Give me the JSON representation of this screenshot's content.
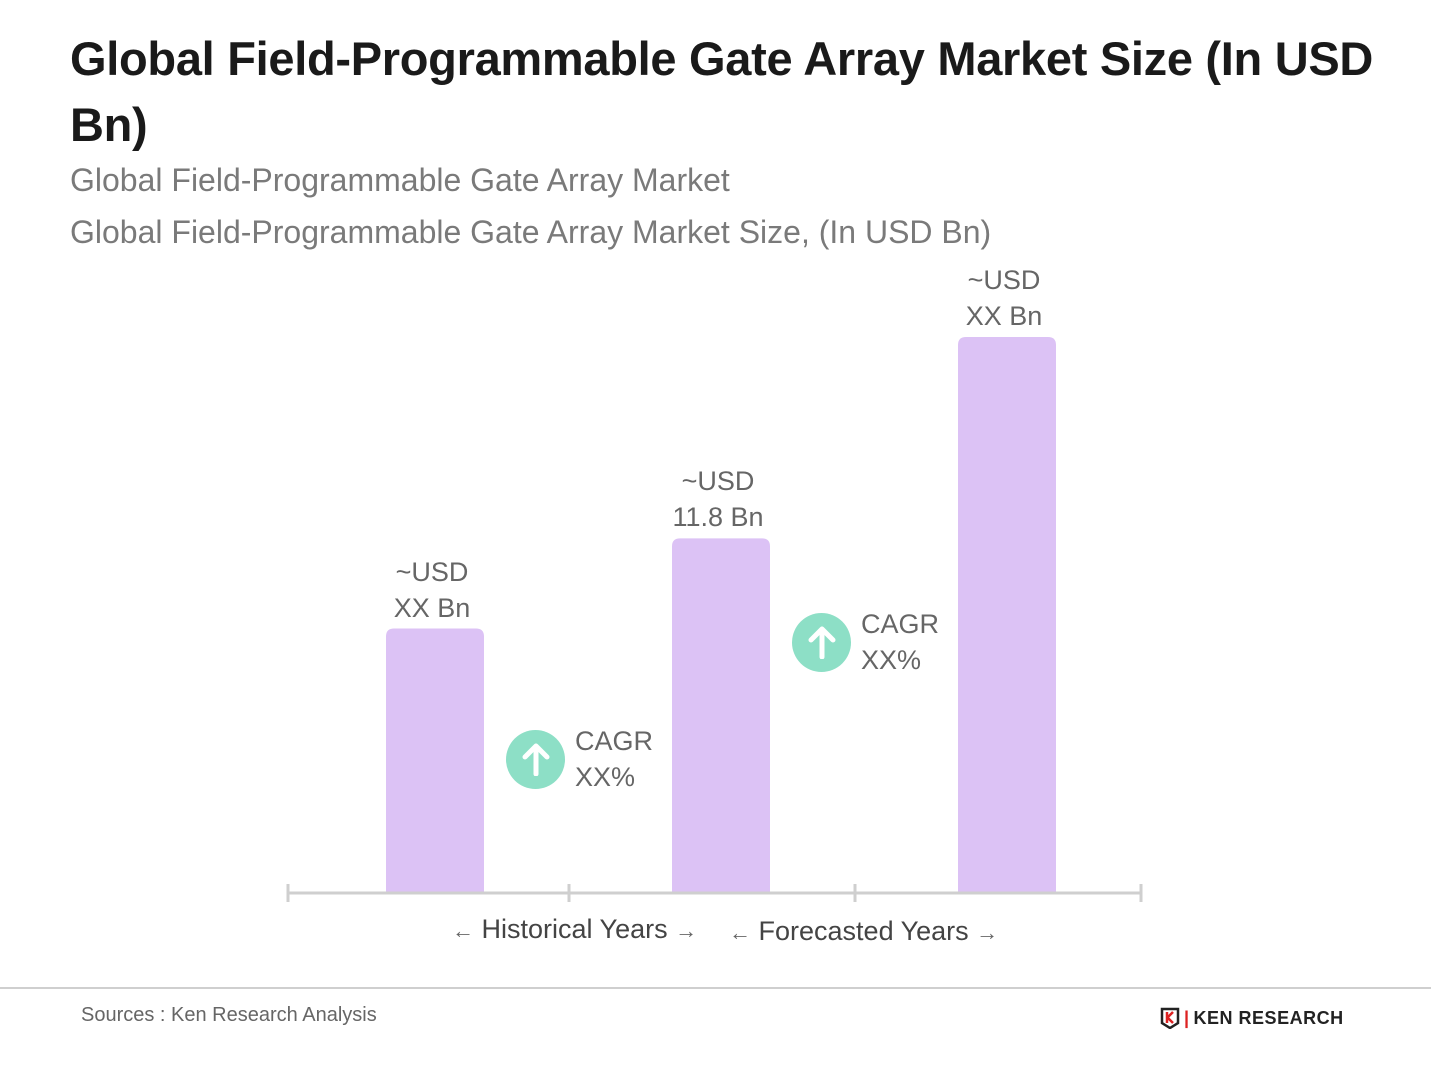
{
  "title": "Global Field-Programmable Gate Array Market Size (In USD Bn)",
  "subtitle1": "Global Field-Programmable Gate Array Market",
  "subtitle2": "Global Field-Programmable Gate Array Market Size, (In USD Bn)",
  "chart_data": {
    "type": "bar",
    "categories": [
      "",
      "",
      ""
    ],
    "values": [
      8.8,
      11.8,
      18.5
    ],
    "data_labels": [
      {
        "line1": "~USD",
        "line2": "XX Bn"
      },
      {
        "line1": "~USD",
        "line2": "11.8 Bn"
      },
      {
        "line1": "~USD",
        "line2": "XX Bn"
      }
    ],
    "ylim": [
      0,
      18.5
    ],
    "grid": false,
    "bar_color": "#dcc2f5",
    "annotations": [
      {
        "label": "CAGR",
        "value": "XX%",
        "icon": "arrow-up-circle-icon",
        "color": "#8ddfc6"
      },
      {
        "label": "CAGR",
        "value": "XX%",
        "icon": "arrow-up-circle-icon",
        "color": "#8ddfc6"
      }
    ],
    "x_groups": [
      {
        "label": "Historical Years"
      },
      {
        "label": "Forecasted Years"
      }
    ]
  },
  "footer": {
    "source": "Sources : Ken Research Analysis",
    "logo_text": "KEN RESEARCH"
  }
}
